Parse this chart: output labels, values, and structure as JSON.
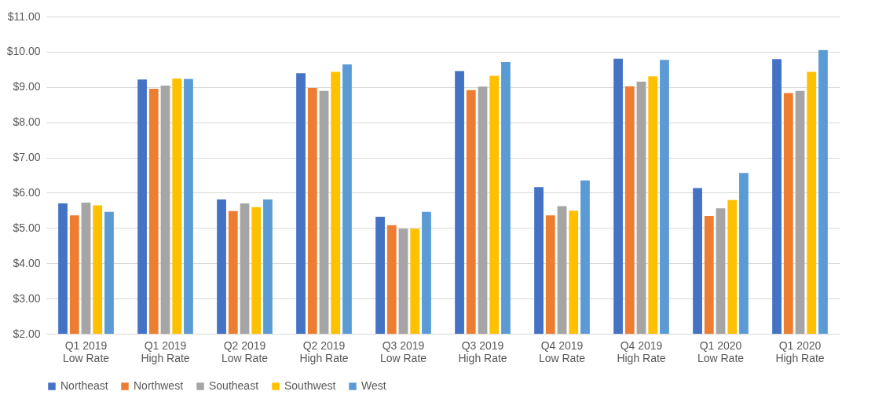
{
  "chart_data": {
    "type": "bar",
    "categories": [
      "Q1 2019 Low Rate",
      "Q1 2019 High Rate",
      "Q2 2019 Low Rate",
      "Q2 2019 High Rate",
      "Q3 2019 Low Rate",
      "Q3 2019 High Rate",
      "Q4 2019 Low Rate",
      "Q4 2019 High Rate",
      "Q1 2020 Low Rate",
      "Q1 2020 High Rate"
    ],
    "series": [
      {
        "name": "Northeast",
        "color": "#4472c4",
        "values": [
          5.7,
          9.21,
          5.81,
          9.39,
          5.32,
          9.45,
          6.16,
          9.8,
          6.13,
          9.79
        ]
      },
      {
        "name": "Northwest",
        "color": "#ed7d31",
        "values": [
          5.36,
          8.95,
          5.48,
          8.97,
          5.08,
          8.91,
          5.36,
          9.02,
          5.34,
          8.83
        ]
      },
      {
        "name": "Southeast",
        "color": "#a5a5a5",
        "values": [
          5.72,
          9.04,
          5.7,
          8.89,
          4.98,
          9.01,
          5.62,
          9.15,
          5.56,
          8.89
        ]
      },
      {
        "name": "Southwest",
        "color": "#ffc000",
        "values": [
          5.64,
          9.24,
          5.59,
          9.43,
          4.98,
          9.32,
          5.49,
          9.3,
          5.79,
          9.43
        ]
      },
      {
        "name": "West",
        "color": "#5b9bd5",
        "values": [
          5.46,
          9.23,
          5.81,
          9.64,
          5.46,
          9.71,
          6.35,
          9.77,
          6.56,
          10.05
        ]
      }
    ],
    "ylim": [
      2,
      11
    ],
    "yticks": [
      {
        "value": 2,
        "label": "$2.00"
      },
      {
        "value": 3,
        "label": "$3.00"
      },
      {
        "value": 4,
        "label": "$4.00"
      },
      {
        "value": 5,
        "label": "$5.00"
      },
      {
        "value": 6,
        "label": "$6.00"
      },
      {
        "value": 7,
        "label": "$7.00"
      },
      {
        "value": 8,
        "label": "$8.00"
      },
      {
        "value": 9,
        "label": "$9.00"
      },
      {
        "value": 10,
        "label": "$10.00"
      },
      {
        "value": 11,
        "label": "$11.00"
      }
    ],
    "grid": "y",
    "legend": "bottom"
  }
}
